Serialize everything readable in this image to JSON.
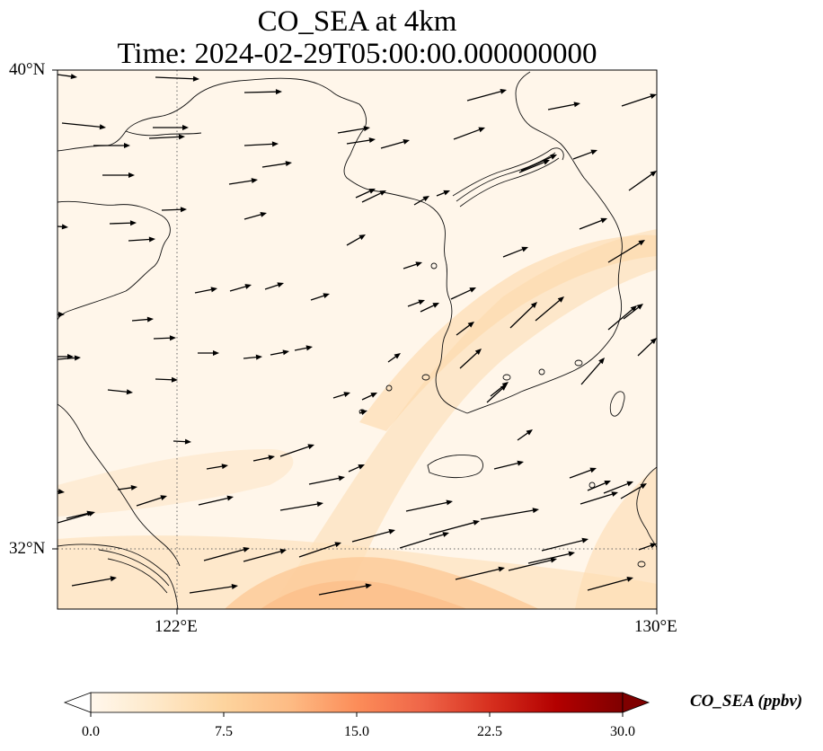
{
  "title_line1": "CO_SEA at 4km",
  "title_line2": "Time: 2024-02-29T05:00:00.000000000",
  "lat_labels": [
    "40°N",
    "32°N"
  ],
  "lon_labels": [
    "122°E",
    "130°E"
  ],
  "colorbar": {
    "label": "CO_SEA (ppbv)",
    "ticks": [
      "0.0",
      "7.5",
      "15.0",
      "22.5",
      "30.0"
    ],
    "min": 0,
    "max": 30,
    "extend": "both",
    "cmap": "OrRd",
    "colors": [
      "#fff7ec",
      "#fee8c8",
      "#fdd49e",
      "#fdbb84",
      "#fc8d59",
      "#ef6548",
      "#d7301f",
      "#b30000",
      "#7f0000"
    ]
  },
  "map": {
    "lon_range": [
      120,
      130
    ],
    "lat_range": [
      31,
      40
    ],
    "gridlines": {
      "lons": [
        122
      ],
      "lats": [
        32
      ],
      "style": "dotted"
    },
    "feature_names": [
      "coastline",
      "wind-vectors",
      "co-concentration-field"
    ]
  },
  "chart_data": {
    "type": "heatmap",
    "variable": "CO_SEA",
    "units": "ppbv",
    "level": "4km",
    "time": "2024-02-29T05:00:00.000000000",
    "lon_range": [
      120,
      130
    ],
    "lat_range": [
      31,
      40
    ],
    "value_range": [
      0,
      30
    ]
  }
}
